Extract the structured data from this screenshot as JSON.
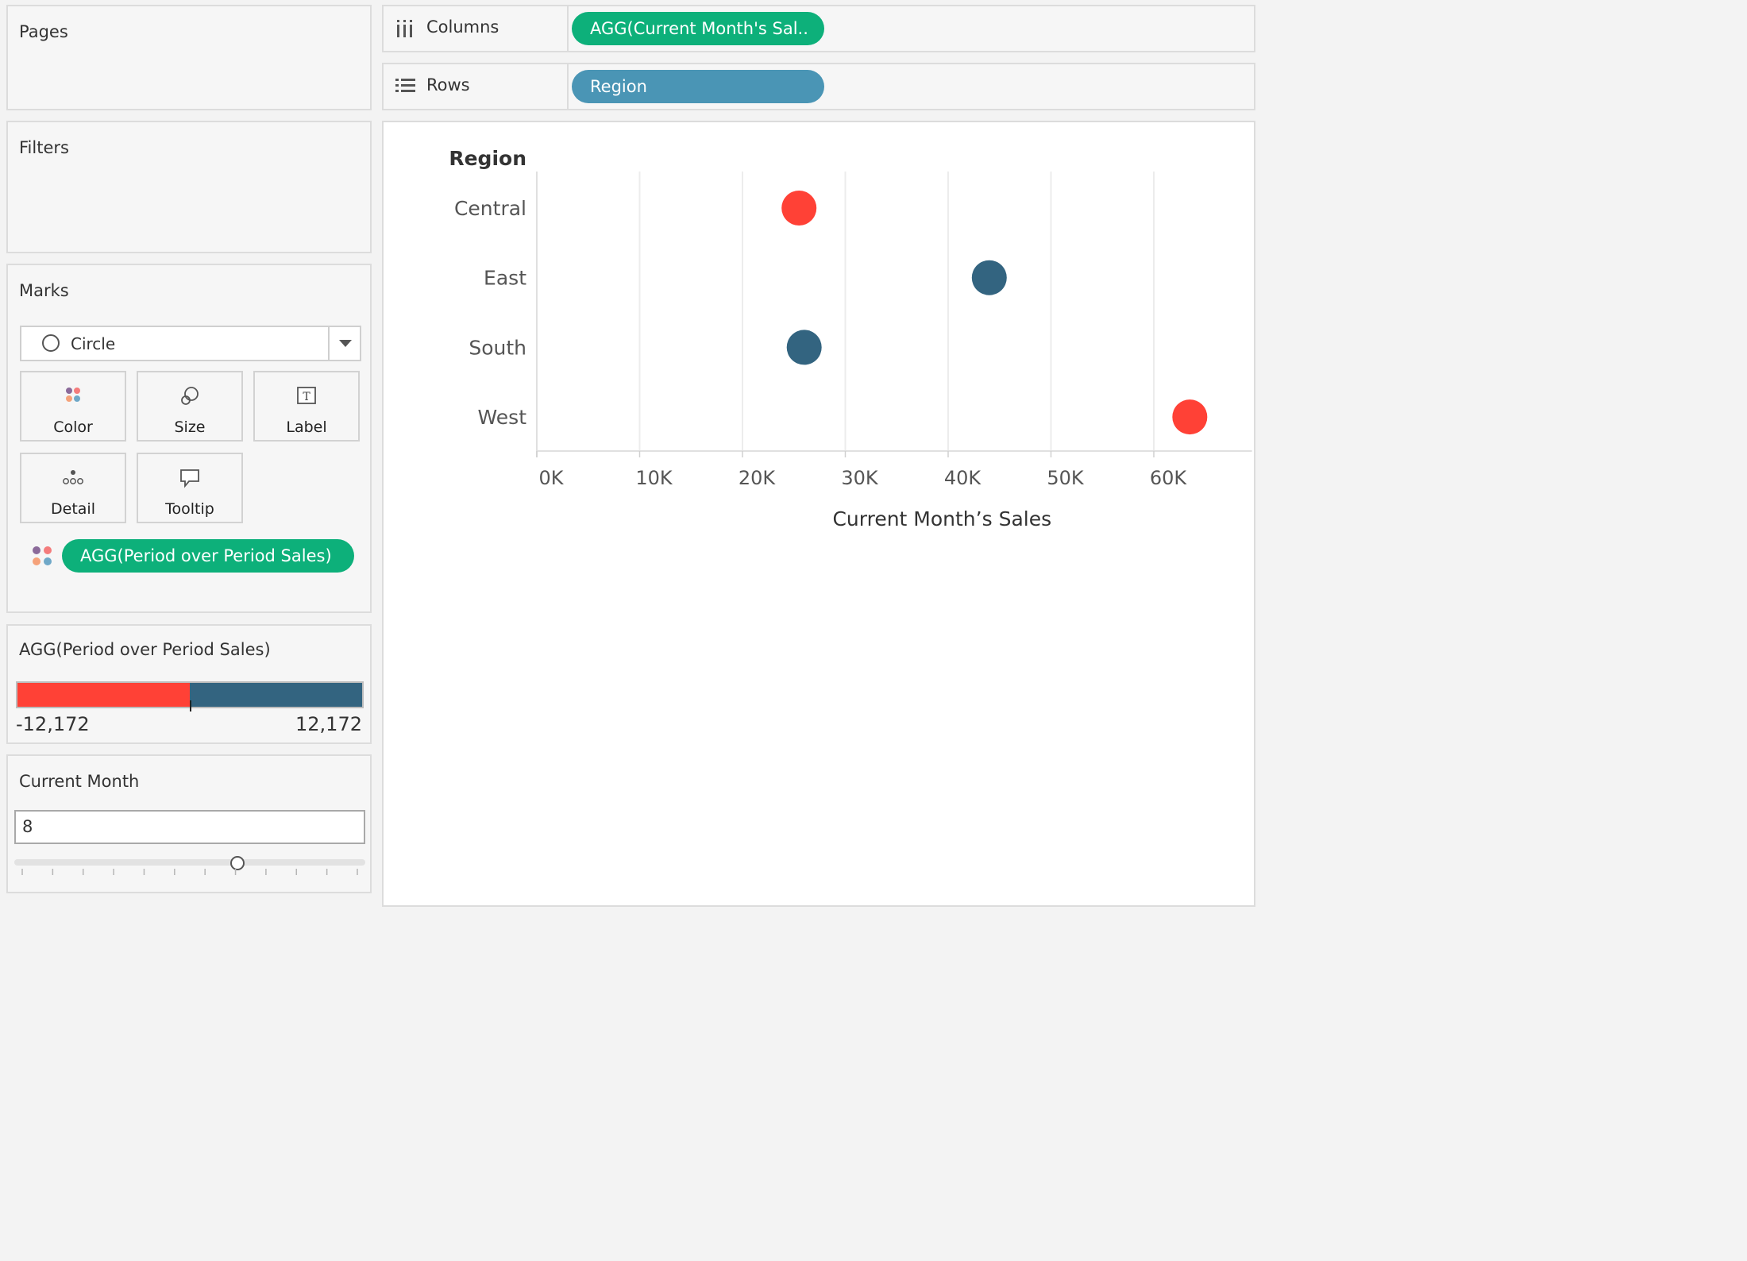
{
  "panels": {
    "pages_title": "Pages",
    "filters_title": "Filters",
    "marks_title": "Marks"
  },
  "marks": {
    "type": "Circle",
    "buttons": {
      "color": "Color",
      "size": "Size",
      "label": "Label",
      "detail": "Detail",
      "tooltip": "Tooltip"
    },
    "color_pill": "AGG(Period over Period Sales)"
  },
  "shelves": {
    "columns_label": "Columns",
    "columns_pill": "AGG(Current Month's Sal..",
    "rows_label": "Rows",
    "rows_pill": "Region"
  },
  "legend": {
    "title": "AGG(Period over Period Sales)",
    "min": "-12,172",
    "max": "12,172",
    "neg_color": "#ff4136",
    "pos_color": "#336480"
  },
  "parameter": {
    "title": "Current Month",
    "value": "8",
    "min": 1,
    "max": 12
  },
  "chart_data": {
    "type": "scatter",
    "row_header": "Region",
    "xlabel": "Current Month’s Sales",
    "xlim": [
      0,
      68000
    ],
    "ticks": [
      0,
      10000,
      20000,
      30000,
      40000,
      50000,
      60000
    ],
    "tick_labels": [
      "0K",
      "10K",
      "20K",
      "30K",
      "40K",
      "50K",
      "60K"
    ],
    "categories": [
      "Central",
      "East",
      "South",
      "West"
    ],
    "values": [
      25500,
      44000,
      26000,
      63500
    ],
    "colors": [
      "#ff4136",
      "#336480",
      "#336480",
      "#ff4136"
    ],
    "grid": true
  }
}
